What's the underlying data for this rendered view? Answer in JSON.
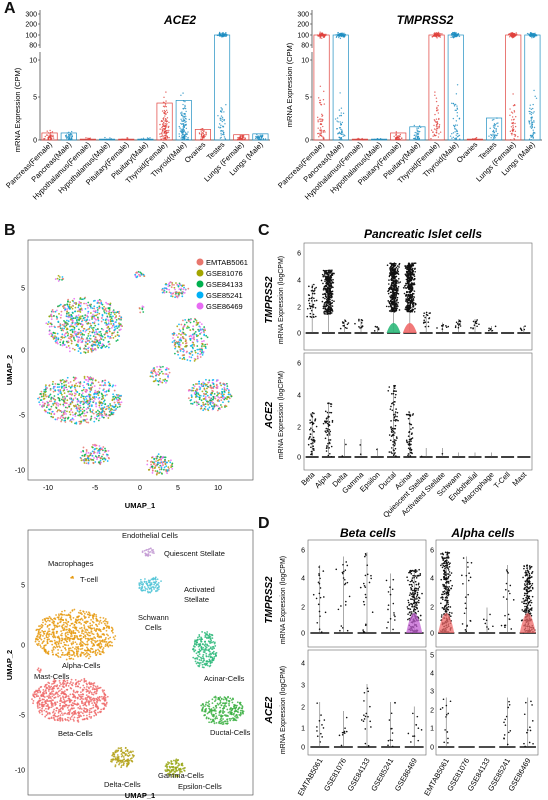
{
  "panels": {
    "A": "A",
    "B": "B",
    "C": "C",
    "D": "D"
  },
  "panelA": {
    "left_title": "ACE2",
    "right_title": "TMPRSS2",
    "ylabel": "mRNA Expression (CPM)",
    "left_ticks_top": [
      "300",
      "200",
      "100",
      "80"
    ],
    "left_ticks": [
      "10",
      "5",
      "0"
    ],
    "right_ticks_top": [
      "300",
      "200",
      "100",
      "80"
    ],
    "right_ticks": [
      "10",
      "5",
      "0"
    ],
    "categories": [
      "Pancreas(Female)",
      "Pancreas(Male)",
      "Hypothalamus(Female)",
      "Hypothalamus(Male)",
      "Pituitary(Female)",
      "Pituitary(Male)",
      "Thyroid(Female)",
      "Thyroid(Male)",
      "Ovaries",
      "Testes",
      "Lungs (Female)",
      "Lungs (Male)"
    ]
  },
  "panelB": {
    "ylabel": "UMAP_2",
    "xlabel": "UMAP_1",
    "xticks": [
      "-10",
      "-5",
      "0",
      "5",
      "10"
    ],
    "yticks": [
      "5",
      "0",
      "-5",
      "-10"
    ],
    "legend": [
      {
        "name": "EMTAB5061",
        "color": "#e8766d"
      },
      {
        "name": "GSE81076",
        "color": "#a3a500"
      },
      {
        "name": "GSE84133",
        "color": "#00b04f"
      },
      {
        "name": "GSE85241",
        "color": "#00b0f6"
      },
      {
        "name": "GSE86469",
        "color": "#e76bf3"
      }
    ],
    "clusters": {
      "endothelial": "Endothelial Cells",
      "quiescent": "Quiescent Stellate",
      "macrophages": "Macrophages",
      "tcell": "T-cell",
      "activated1": "Activated",
      "activated2": "Stellate",
      "schwann1": "Schwann",
      "schwann2": "Cells",
      "alpha": "Alpha-Cells",
      "mast": "Mast-Cells",
      "acinar": "Acinar-Cells",
      "beta": "Beta-Cells",
      "ductal": "Ductal-Cells",
      "delta": "Delta-Cells",
      "gamma": "Gamma-Cells",
      "epsilon": "Epsilon-Cells"
    }
  },
  "panelC": {
    "title": "Pancreatic Islet cells",
    "gene1": "TMPRSS2",
    "gene2": "ACE2",
    "ylabel": "mRNA Expression (logCPM)",
    "ticks1": [
      "6",
      "4",
      "2",
      "0"
    ],
    "ticks2": [
      "6",
      "4",
      "2",
      "0"
    ],
    "categories": [
      "Beta",
      "Alpha",
      "Delta",
      "Gamma",
      "Epsilon",
      "Ductal",
      "Acinar",
      "Quiescent Stellate",
      "Activated Stellate",
      "Schwann",
      "Endothelial",
      "Macrophage",
      "T-Cell",
      "Mast"
    ]
  },
  "panelD": {
    "beta_title": "Beta cells",
    "alpha_title": "Alpha cells",
    "gene1": "TMPRSS2",
    "gene2": "ACE2",
    "ylabel": "mRNA Expression (logCPM)",
    "ticks1": [
      "6",
      "4",
      "2",
      "0"
    ],
    "ticks2": [
      "4",
      "3",
      "2",
      "1",
      "0"
    ],
    "ticks2b": [
      "5",
      "4",
      "3",
      "2",
      "1",
      "0"
    ],
    "categories": [
      "EMTAB5061",
      "GSE81076",
      "GSE84133",
      "GSE85241",
      "GSE86469"
    ]
  }
}
